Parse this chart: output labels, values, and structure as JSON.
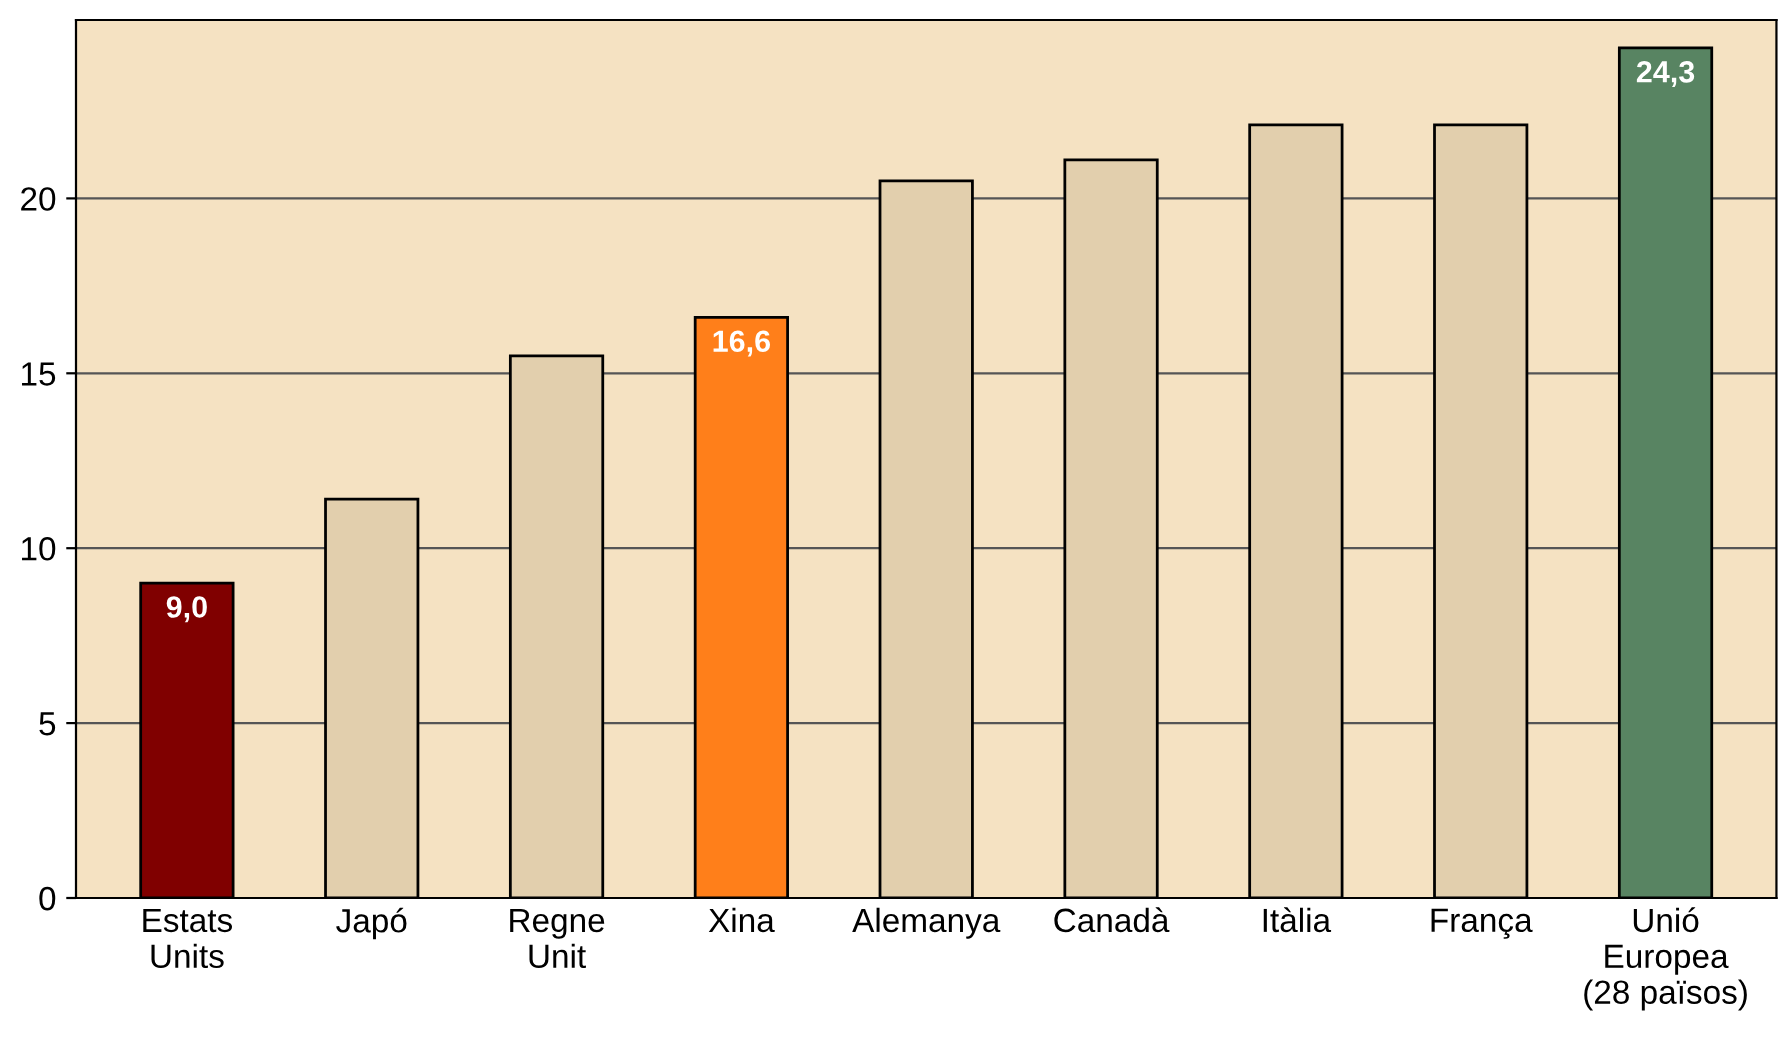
{
  "chart_data": {
    "type": "bar",
    "categories": [
      "Estats\nUnits",
      "Japó",
      "Regne\nUnit",
      "Xina",
      "Alemanya",
      "Canadà",
      "Itàlia",
      "França",
      "Unió\nEuropea\n(28 països)"
    ],
    "values": [
      9.0,
      11.4,
      15.5,
      16.6,
      20.5,
      21.1,
      22.1,
      22.1,
      24.3
    ],
    "colors": [
      "#800000",
      "#e2cfad",
      "#e2cfad",
      "#ff7f1a",
      "#e2cfad",
      "#e2cfad",
      "#e2cfad",
      "#e2cfad",
      "#588462"
    ],
    "value_labels": [
      "9,0",
      null,
      null,
      "16,6",
      null,
      null,
      null,
      null,
      "24,3"
    ],
    "ylim": [
      0,
      25.1
    ],
    "yticks": [
      0,
      5,
      10,
      15,
      20
    ],
    "grid": "y"
  }
}
